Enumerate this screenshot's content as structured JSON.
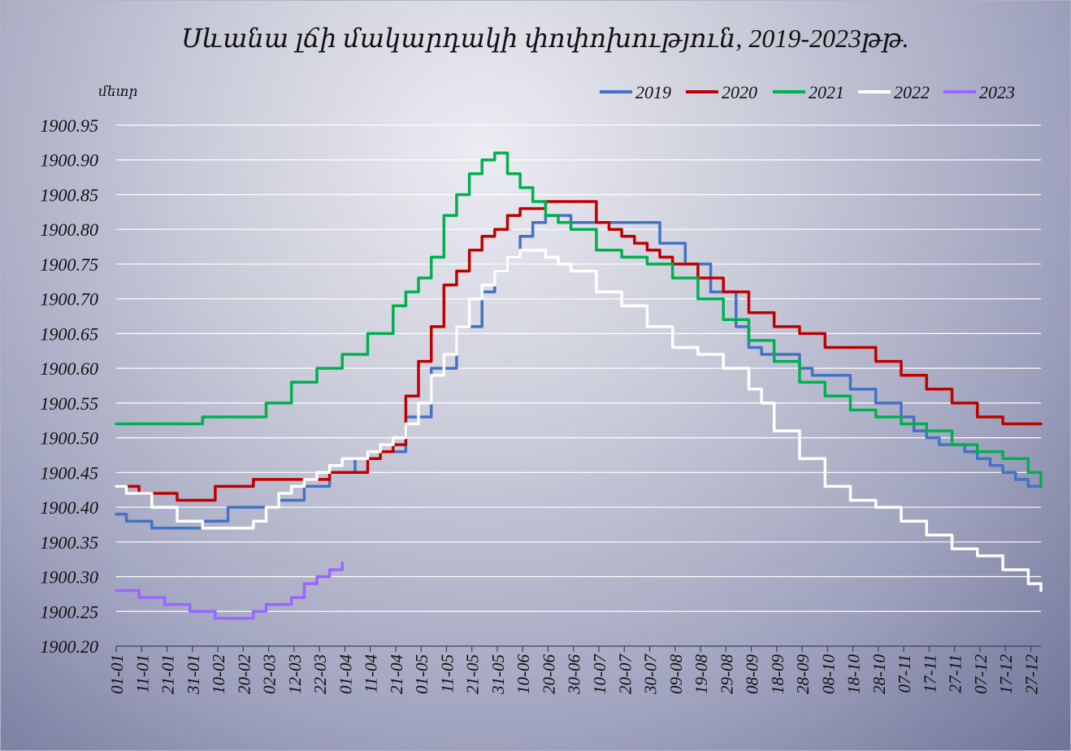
{
  "chart_data": {
    "type": "line",
    "title": "Սևանա լճի մակարդակի փոփոխություն, 2019-2023թթ.",
    "unit_label": "մետր",
    "ylim": [
      1900.2,
      1900.95
    ],
    "ytick_step": 0.05,
    "ytick_labels": [
      "1900.20",
      "1900.25",
      "1900.30",
      "1900.35",
      "1900.40",
      "1900.45",
      "1900.50",
      "1900.55",
      "1900.60",
      "1900.65",
      "1900.70",
      "1900.75",
      "1900.80",
      "1900.85",
      "1900.90",
      "1900.95"
    ],
    "x_day_range": [
      1,
      365
    ],
    "x_tick_days": [
      1,
      11,
      21,
      31,
      41,
      51,
      61,
      71,
      81,
      91,
      101,
      111,
      121,
      131,
      141,
      151,
      161,
      171,
      181,
      191,
      201,
      211,
      221,
      231,
      241,
      251,
      261,
      271,
      281,
      291,
      301,
      311,
      321,
      331,
      341,
      351,
      361
    ],
    "x_tick_labels": [
      "01-01",
      "11-01",
      "21-01",
      "31-01",
      "10-02",
      "20-02",
      "02-03",
      "12-03",
      "22-03",
      "01-04",
      "11-04",
      "21-04",
      "01-05",
      "11-05",
      "21-05",
      "31-05",
      "10-06",
      "20-06",
      "30-06",
      "10-07",
      "20-07",
      "30-07",
      "09-08",
      "19-08",
      "29-08",
      "08-09",
      "18-09",
      "28-09",
      "08-10",
      "18-10",
      "28-10",
      "07-11",
      "17-11",
      "27-11",
      "07-12",
      "17-12",
      "27-12"
    ],
    "grid": "horizontal",
    "legend_position": "top-right",
    "series": [
      {
        "name": "2019",
        "color": "#4472c4",
        "x": [
          1,
          5,
          15,
          25,
          35,
          45,
          55,
          65,
          75,
          85,
          95,
          105,
          115,
          125,
          135,
          145,
          150,
          155,
          160,
          165,
          170,
          175,
          180,
          187,
          195,
          205,
          215,
          225,
          235,
          245,
          250,
          255,
          260,
          265,
          270,
          275,
          280,
          290,
          300,
          310,
          315,
          320,
          325,
          330,
          335,
          340,
          345,
          350,
          355,
          360,
          365
        ],
        "values": [
          1900.39,
          1900.38,
          1900.37,
          1900.37,
          1900.38,
          1900.4,
          1900.4,
          1900.41,
          1900.43,
          1900.45,
          1900.47,
          1900.48,
          1900.53,
          1900.6,
          1900.66,
          1900.71,
          1900.74,
          1900.76,
          1900.79,
          1900.81,
          1900.82,
          1900.82,
          1900.81,
          1900.81,
          1900.81,
          1900.81,
          1900.78,
          1900.75,
          1900.71,
          1900.66,
          1900.63,
          1900.62,
          1900.62,
          1900.62,
          1900.6,
          1900.59,
          1900.59,
          1900.57,
          1900.55,
          1900.53,
          1900.51,
          1900.5,
          1900.49,
          1900.49,
          1900.48,
          1900.47,
          1900.46,
          1900.45,
          1900.44,
          1900.43,
          1900.43
        ]
      },
      {
        "name": "2020",
        "color": "#c00000",
        "x": [
          1,
          10,
          20,
          25,
          35,
          40,
          45,
          55,
          65,
          75,
          85,
          95,
          100,
          105,
          110,
          115,
          120,
          125,
          130,
          135,
          140,
          145,
          150,
          155,
          160,
          165,
          170,
          175,
          180,
          190,
          195,
          200,
          205,
          210,
          215,
          220,
          230,
          240,
          250,
          260,
          270,
          280,
          290,
          300,
          310,
          320,
          330,
          340,
          350,
          355,
          365
        ],
        "values": [
          1900.43,
          1900.42,
          1900.42,
          1900.41,
          1900.41,
          1900.43,
          1900.43,
          1900.44,
          1900.44,
          1900.44,
          1900.45,
          1900.45,
          1900.47,
          1900.48,
          1900.49,
          1900.56,
          1900.61,
          1900.66,
          1900.72,
          1900.74,
          1900.77,
          1900.79,
          1900.8,
          1900.82,
          1900.83,
          1900.83,
          1900.84,
          1900.84,
          1900.84,
          1900.81,
          1900.8,
          1900.79,
          1900.78,
          1900.77,
          1900.76,
          1900.75,
          1900.73,
          1900.71,
          1900.68,
          1900.66,
          1900.65,
          1900.63,
          1900.63,
          1900.61,
          1900.59,
          1900.57,
          1900.55,
          1900.53,
          1900.52,
          1900.52,
          1900.52
        ]
      },
      {
        "name": "2021",
        "color": "#00b050",
        "x": [
          1,
          10,
          20,
          30,
          35,
          40,
          50,
          60,
          70,
          80,
          90,
          100,
          110,
          115,
          120,
          125,
          130,
          135,
          140,
          145,
          150,
          155,
          160,
          165,
          170,
          175,
          180,
          190,
          200,
          210,
          220,
          230,
          240,
          250,
          260,
          270,
          280,
          290,
          300,
          310,
          320,
          330,
          340,
          350,
          360,
          365
        ],
        "values": [
          1900.52,
          1900.52,
          1900.52,
          1900.52,
          1900.53,
          1900.53,
          1900.53,
          1900.55,
          1900.58,
          1900.6,
          1900.62,
          1900.65,
          1900.69,
          1900.71,
          1900.73,
          1900.76,
          1900.82,
          1900.85,
          1900.88,
          1900.9,
          1900.91,
          1900.88,
          1900.86,
          1900.84,
          1900.82,
          1900.81,
          1900.8,
          1900.77,
          1900.76,
          1900.75,
          1900.73,
          1900.7,
          1900.67,
          1900.64,
          1900.61,
          1900.58,
          1900.56,
          1900.54,
          1900.53,
          1900.52,
          1900.51,
          1900.49,
          1900.48,
          1900.47,
          1900.45,
          1900.43
        ]
      },
      {
        "name": "2022",
        "color": "#ffffff",
        "x": [
          1,
          5,
          15,
          25,
          35,
          45,
          55,
          60,
          65,
          70,
          75,
          80,
          85,
          90,
          100,
          105,
          110,
          115,
          120,
          125,
          130,
          135,
          140,
          145,
          150,
          155,
          160,
          165,
          170,
          175,
          180,
          190,
          200,
          210,
          220,
          230,
          240,
          250,
          255,
          260,
          270,
          280,
          290,
          300,
          310,
          320,
          330,
          340,
          350,
          360,
          365
        ],
        "values": [
          1900.43,
          1900.42,
          1900.4,
          1900.38,
          1900.37,
          1900.37,
          1900.38,
          1900.4,
          1900.42,
          1900.43,
          1900.44,
          1900.45,
          1900.46,
          1900.47,
          1900.48,
          1900.49,
          1900.5,
          1900.52,
          1900.55,
          1900.59,
          1900.62,
          1900.66,
          1900.7,
          1900.72,
          1900.74,
          1900.76,
          1900.77,
          1900.77,
          1900.76,
          1900.75,
          1900.74,
          1900.71,
          1900.69,
          1900.66,
          1900.63,
          1900.62,
          1900.6,
          1900.57,
          1900.55,
          1900.51,
          1900.47,
          1900.43,
          1900.41,
          1900.4,
          1900.38,
          1900.36,
          1900.34,
          1900.33,
          1900.31,
          1900.29,
          1900.28
        ]
      },
      {
        "name": "2023",
        "color": "#9966ff",
        "x": [
          1,
          10,
          20,
          30,
          40,
          50,
          55,
          60,
          65,
          70,
          75,
          80,
          85,
          90
        ],
        "values": [
          1900.28,
          1900.27,
          1900.26,
          1900.25,
          1900.24,
          1900.24,
          1900.25,
          1900.26,
          1900.26,
          1900.27,
          1900.29,
          1900.3,
          1900.31,
          1900.32
        ]
      }
    ]
  }
}
